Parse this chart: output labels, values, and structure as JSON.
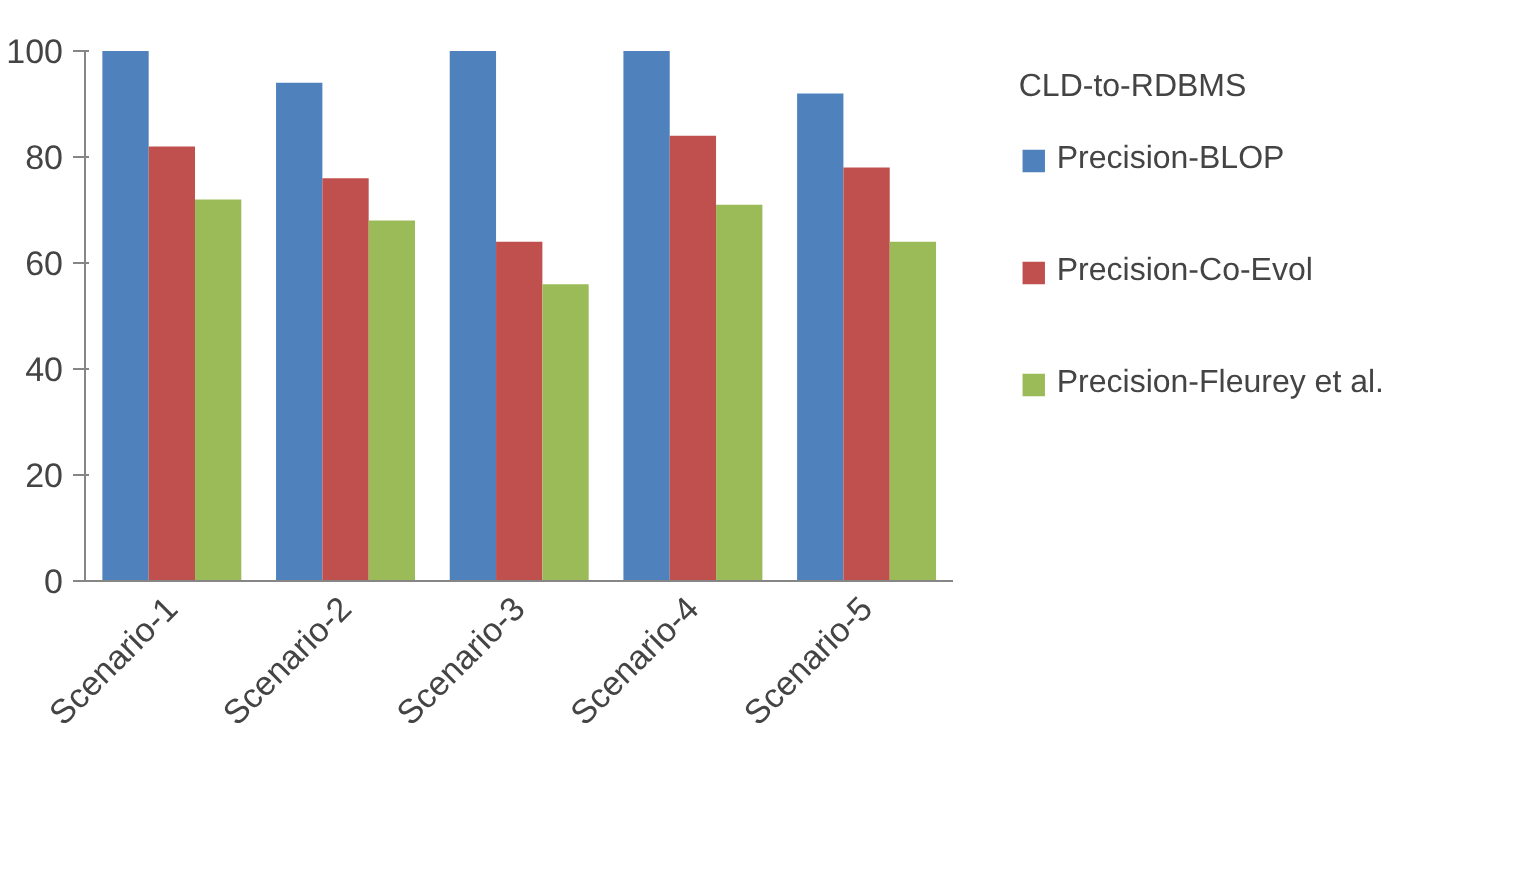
{
  "chart_data": {
    "type": "bar",
    "legend_title": "CLD-to-RDBMS",
    "categories": [
      "Scenario-1",
      "Scenario-2",
      "Scenario-3",
      "Scenario-4",
      "Scenario-5"
    ],
    "series": [
      {
        "name": "Precision-BLOP",
        "color": "#4f81bd",
        "values": [
          100,
          94,
          100,
          100,
          92
        ]
      },
      {
        "name": "Precision-Co-Evol",
        "color": "#c0504d",
        "values": [
          82,
          76,
          64,
          84,
          78
        ]
      },
      {
        "name": "Precision-Fleurey et al.",
        "color": "#9bbb59",
        "values": [
          72,
          68,
          56,
          71,
          64
        ]
      }
    ],
    "ylim": [
      0,
      100
    ],
    "yticks": [
      0,
      20,
      40,
      60,
      80,
      100
    ],
    "grid": false,
    "legend": "right"
  }
}
